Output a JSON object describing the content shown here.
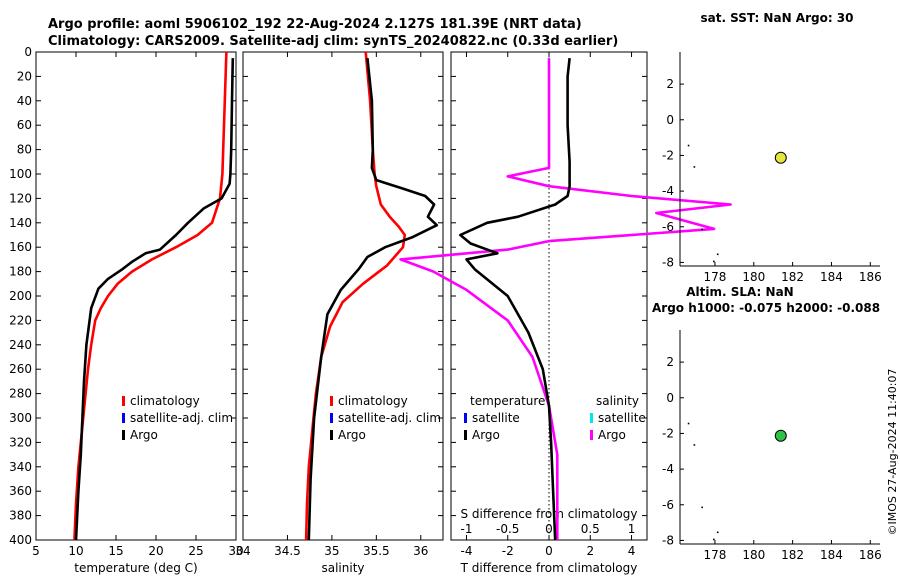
{
  "header": {
    "title_line1": "Argo profile: aoml 5906102_192 22-Aug-2024 2.127S 181.39E (NRT data)",
    "title_line2": "Climatology: CARS2009. Satellite-adj clim: synTS_20240822.nc (0.33d earlier)"
  },
  "side": {
    "sst_title": "sat. SST: NaN Argo: 30",
    "sla_title1": "Altim. SLA: NaN",
    "sla_title2": "Argo h1000: -0.075 h2000: -0.088",
    "credit": "©IMOS 27-Aug-2024 11:40:07"
  },
  "colors": {
    "climatology": "#ff0000",
    "satellite": "#0000ff",
    "argo": "#000000",
    "sat_s": "#00e5ee",
    "argo_s": "#ff00ff",
    "sst_marker": "#e5e63a",
    "sla_marker": "#2fc24a"
  },
  "chart_data": [
    {
      "id": "temperature",
      "type": "line",
      "xlabel": "temperature (deg C)",
      "xlim": [
        5,
        30
      ],
      "xticks": [
        5,
        10,
        15,
        20,
        25,
        30
      ],
      "xticklabels": [
        "5",
        "10",
        "15",
        "20",
        "25",
        "30"
      ],
      "ylim": [
        0,
        400
      ],
      "yticks": [
        0,
        20,
        40,
        60,
        80,
        100,
        120,
        140,
        160,
        180,
        200,
        220,
        240,
        260,
        280,
        300,
        320,
        340,
        360,
        380,
        400
      ],
      "yticklabels": [
        "0",
        "20",
        "40",
        "60",
        "80",
        "100",
        "120",
        "140",
        "160",
        "180",
        "200",
        "220",
        "240",
        "260",
        "280",
        "300",
        "320",
        "340",
        "360",
        "380",
        "400"
      ],
      "legend": [
        "climatology",
        "satellite-adj. clim",
        "Argo"
      ],
      "series": [
        {
          "name": "climatology",
          "color": "#ff0000",
          "x": [
            28.8,
            28.7,
            28.6,
            28.5,
            28.4,
            28.3,
            28.0,
            27.0,
            25.2,
            22.5,
            19.5,
            17.0,
            15.2,
            14.0,
            13.1,
            12.4,
            11.9,
            11.5,
            11.2,
            10.9,
            10.6,
            10.3,
            10.0,
            9.8
          ],
          "y": [
            0,
            20,
            40,
            60,
            80,
            100,
            120,
            140,
            150,
            160,
            170,
            180,
            190,
            200,
            210,
            220,
            240,
            260,
            280,
            300,
            320,
            340,
            370,
            400
          ]
        },
        {
          "name": "Argo",
          "color": "#000000",
          "x": [
            29.6,
            29.5,
            29.4,
            29.3,
            29.2,
            28.2,
            26.0,
            24.0,
            22.5,
            20.5,
            18.7,
            17.0,
            15.8,
            14.0,
            12.8,
            11.9,
            11.3,
            11.0,
            10.8,
            10.6,
            10.3,
            10.0
          ],
          "y": [
            5,
            40,
            80,
            100,
            108,
            120,
            128,
            140,
            150,
            162,
            165,
            172,
            178,
            186,
            194,
            210,
            240,
            270,
            300,
            330,
            360,
            400
          ]
        }
      ]
    },
    {
      "id": "salinity",
      "type": "line",
      "xlabel": "salinity",
      "xlim": [
        34,
        36.25
      ],
      "xticks": [
        34,
        34.5,
        35,
        35.5,
        36
      ],
      "xticklabels": [
        "34",
        "34.5",
        "35",
        "35.5",
        "36"
      ],
      "ylim": [
        0,
        400
      ],
      "legend": [
        "climatology",
        "satellite-adj. clim",
        "Argo"
      ],
      "series": [
        {
          "name": "climatology",
          "color": "#ff0000",
          "x": [
            35.38,
            35.43,
            35.46,
            35.48,
            35.5,
            35.55,
            35.65,
            35.75,
            35.82,
            35.8,
            35.62,
            35.35,
            35.12,
            34.98,
            34.88,
            34.82,
            34.78,
            34.74,
            34.72,
            34.71
          ],
          "y": [
            0,
            40,
            80,
            100,
            110,
            125,
            135,
            143,
            150,
            160,
            175,
            190,
            205,
            225,
            250,
            280,
            310,
            340,
            370,
            400
          ]
        },
        {
          "name": "Argo",
          "color": "#000000",
          "x": [
            35.4,
            35.45,
            35.46,
            35.45,
            35.5,
            35.8,
            36.05,
            36.15,
            36.08,
            36.18,
            35.9,
            35.6,
            35.4,
            35.3,
            35.1,
            34.95,
            34.88,
            34.8,
            34.76,
            34.74
          ],
          "y": [
            5,
            40,
            80,
            95,
            105,
            112,
            118,
            125,
            135,
            142,
            152,
            160,
            168,
            178,
            195,
            215,
            250,
            300,
            350,
            400
          ]
        }
      ]
    },
    {
      "id": "difference",
      "type": "line",
      "xlabel": "T difference from climatology",
      "top_label": "S difference from climatology",
      "xlim": [
        -4.75,
        4.75
      ],
      "xticks": [
        -4,
        -2,
        0,
        2,
        4
      ],
      "xticklabels": [
        "-4",
        "-2",
        "0",
        "2",
        "4"
      ],
      "top_ticks": [
        -1,
        -0.5,
        0,
        0.5,
        1
      ],
      "top_ticklabels": [
        "-1",
        "-0.5",
        "0",
        "0.5",
        "1"
      ],
      "ylim": [
        0,
        400
      ],
      "legend_t_title": "temperature",
      "legend_s_title": "salinity",
      "legend_t": [
        "satellite",
        "Argo"
      ],
      "legend_s": [
        "satellite",
        "Argo"
      ],
      "series": [
        {
          "name": "T Argo",
          "color": "#000000",
          "x": [
            1.0,
            0.9,
            0.9,
            1.0,
            1.0,
            0.9,
            0.3,
            -1.5,
            -3.0,
            -4.3,
            -3.8,
            -2.5,
            -4.0,
            -3.6,
            -2.0,
            -1.0,
            -0.3,
            0.0,
            0.1,
            0.2,
            0.3
          ],
          "y": [
            5,
            20,
            60,
            90,
            110,
            118,
            125,
            135,
            140,
            150,
            157,
            165,
            170,
            178,
            200,
            230,
            260,
            290,
            320,
            360,
            400
          ]
        },
        {
          "name": "S Argo",
          "color": "#ff00ff",
          "x": [
            0.0,
            0.0,
            0.0,
            0.0,
            -0.5,
            0.0,
            1.0,
            2.2,
            1.3,
            2.0,
            0.0,
            -0.5,
            -1.8,
            -1.4,
            -1.0,
            -0.5,
            -0.2,
            0.0,
            0.1,
            0.1
          ],
          "y": [
            5,
            40,
            80,
            95,
            102,
            110,
            118,
            125,
            132,
            145,
            155,
            162,
            170,
            180,
            195,
            220,
            250,
            290,
            330,
            400
          ]
        }
      ]
    },
    {
      "id": "sst_map",
      "type": "scatter",
      "xlim": [
        176.2,
        186.5
      ],
      "ylim": [
        -8.2,
        3.8
      ],
      "xticks": [
        178,
        180,
        182,
        184,
        186
      ],
      "xticklabels": [
        "178",
        "180",
        "182",
        "184",
        "186"
      ],
      "yticks": [
        2,
        0,
        -2,
        -4,
        -6,
        -8
      ],
      "yticklabels": [
        "2",
        "0",
        "-2",
        "-4",
        "-6",
        "-8"
      ],
      "points": [
        {
          "x": 181.39,
          "y": -2.127
        }
      ],
      "specks": [
        {
          "x": 176.6,
          "y": -1.4
        },
        {
          "x": 176.9,
          "y": -2.6
        },
        {
          "x": 177.3,
          "y": -6.1
        },
        {
          "x": 177.9,
          "y": -7.9
        },
        {
          "x": 178.1,
          "y": -7.5
        }
      ]
    },
    {
      "id": "sla_map",
      "type": "scatter",
      "xlim": [
        176.2,
        186.5
      ],
      "ylim": [
        -8.2,
        3.8
      ],
      "xticks": [
        178,
        180,
        182,
        184,
        186
      ],
      "xticklabels": [
        "178",
        "180",
        "182",
        "184",
        "186"
      ],
      "yticks": [
        2,
        0,
        -2,
        -4,
        -6,
        -8
      ],
      "yticklabels": [
        "2",
        "0",
        "-2",
        "-4",
        "-6",
        "-8"
      ],
      "points": [
        {
          "x": 181.39,
          "y": -2.127
        }
      ],
      "specks": [
        {
          "x": 176.6,
          "y": -1.4
        },
        {
          "x": 176.9,
          "y": -2.6
        },
        {
          "x": 177.3,
          "y": -6.1
        },
        {
          "x": 177.9,
          "y": -7.9
        },
        {
          "x": 178.1,
          "y": -7.5
        }
      ]
    }
  ]
}
